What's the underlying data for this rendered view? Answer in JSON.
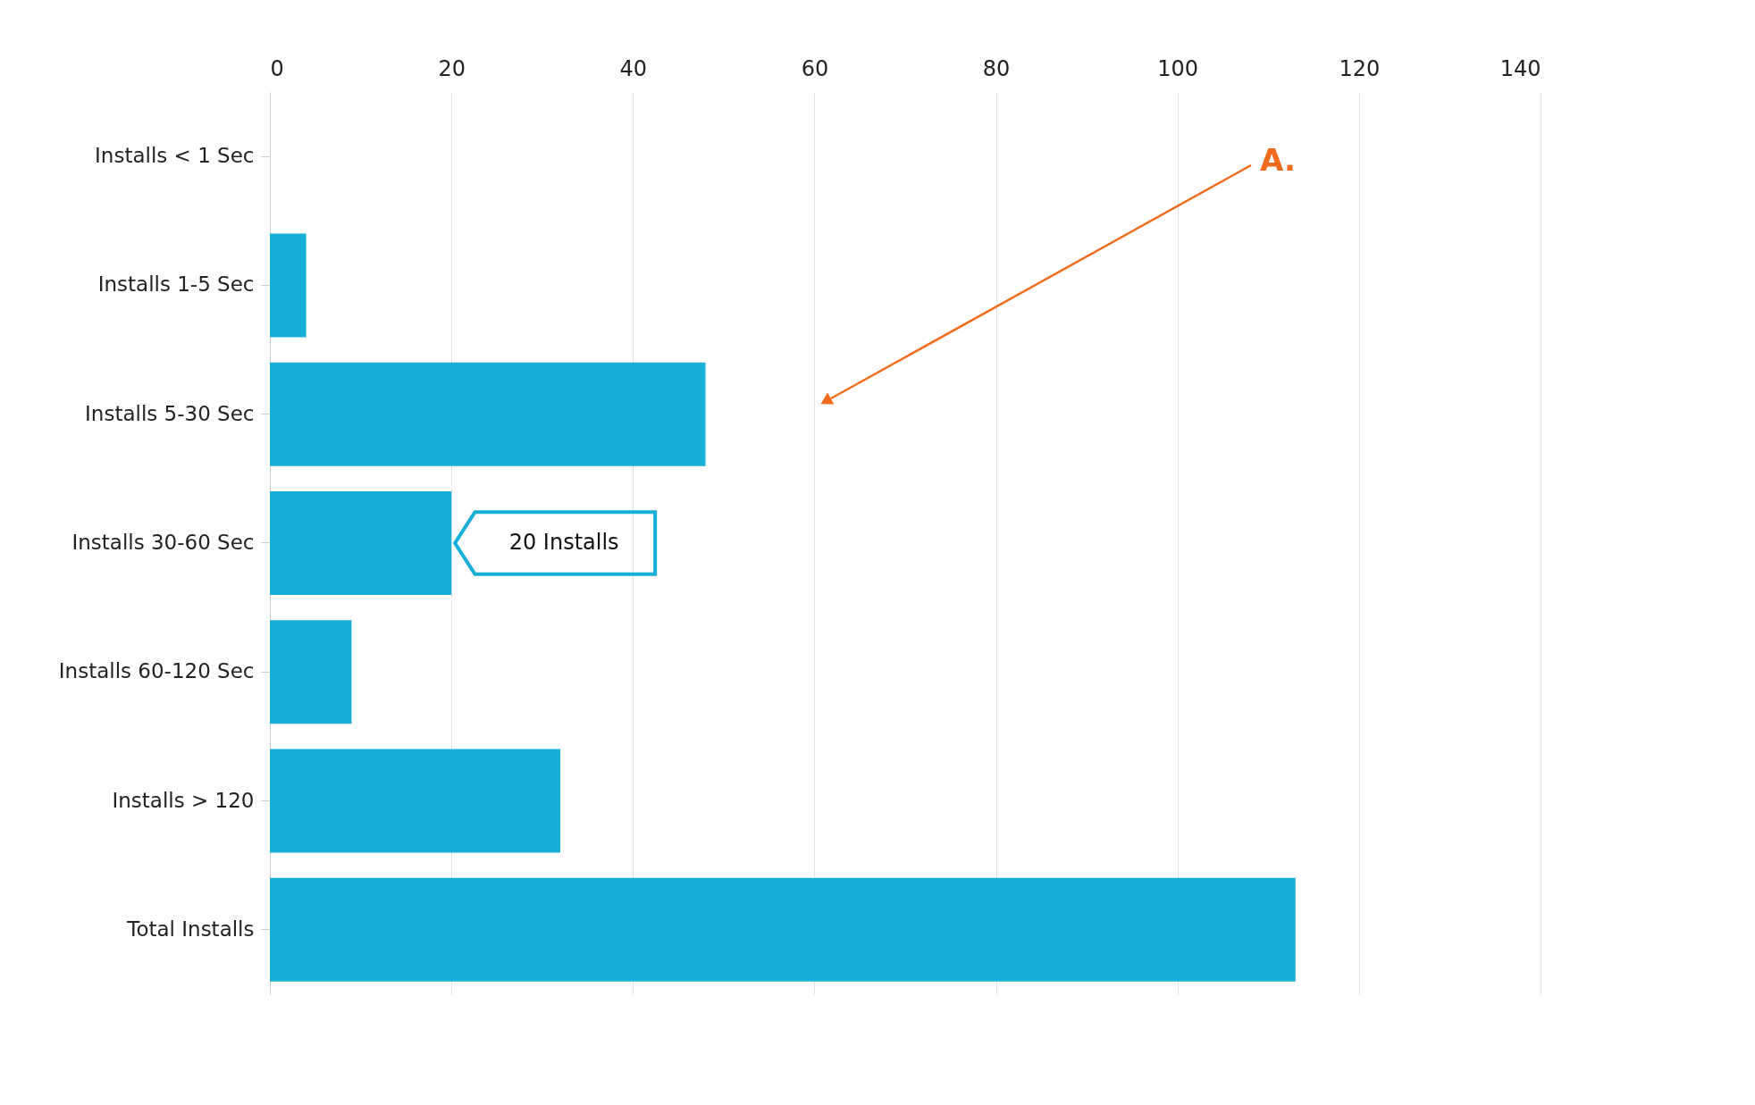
{
  "chart_data": {
    "type": "bar",
    "orientation": "horizontal",
    "categories": [
      "Installs < 1 Sec",
      "Installs 1-5 Sec",
      "Installs 5-30 Sec",
      "Installs 30-60 Sec",
      "Installs 60-120 Sec",
      "Installs > 120",
      "Total Installs"
    ],
    "values": [
      0,
      4,
      48,
      20,
      9,
      32,
      113
    ],
    "color": "#17aed8",
    "xlim": [
      0,
      140
    ],
    "xticks": [
      0,
      20,
      40,
      60,
      80,
      100,
      120,
      140
    ],
    "grid": true,
    "annotations": [
      "A.",
      {
        "text": "20 Installs",
        "x": 20,
        "y": "Installs 30-60 Sec"
      }
    ]
  }
}
